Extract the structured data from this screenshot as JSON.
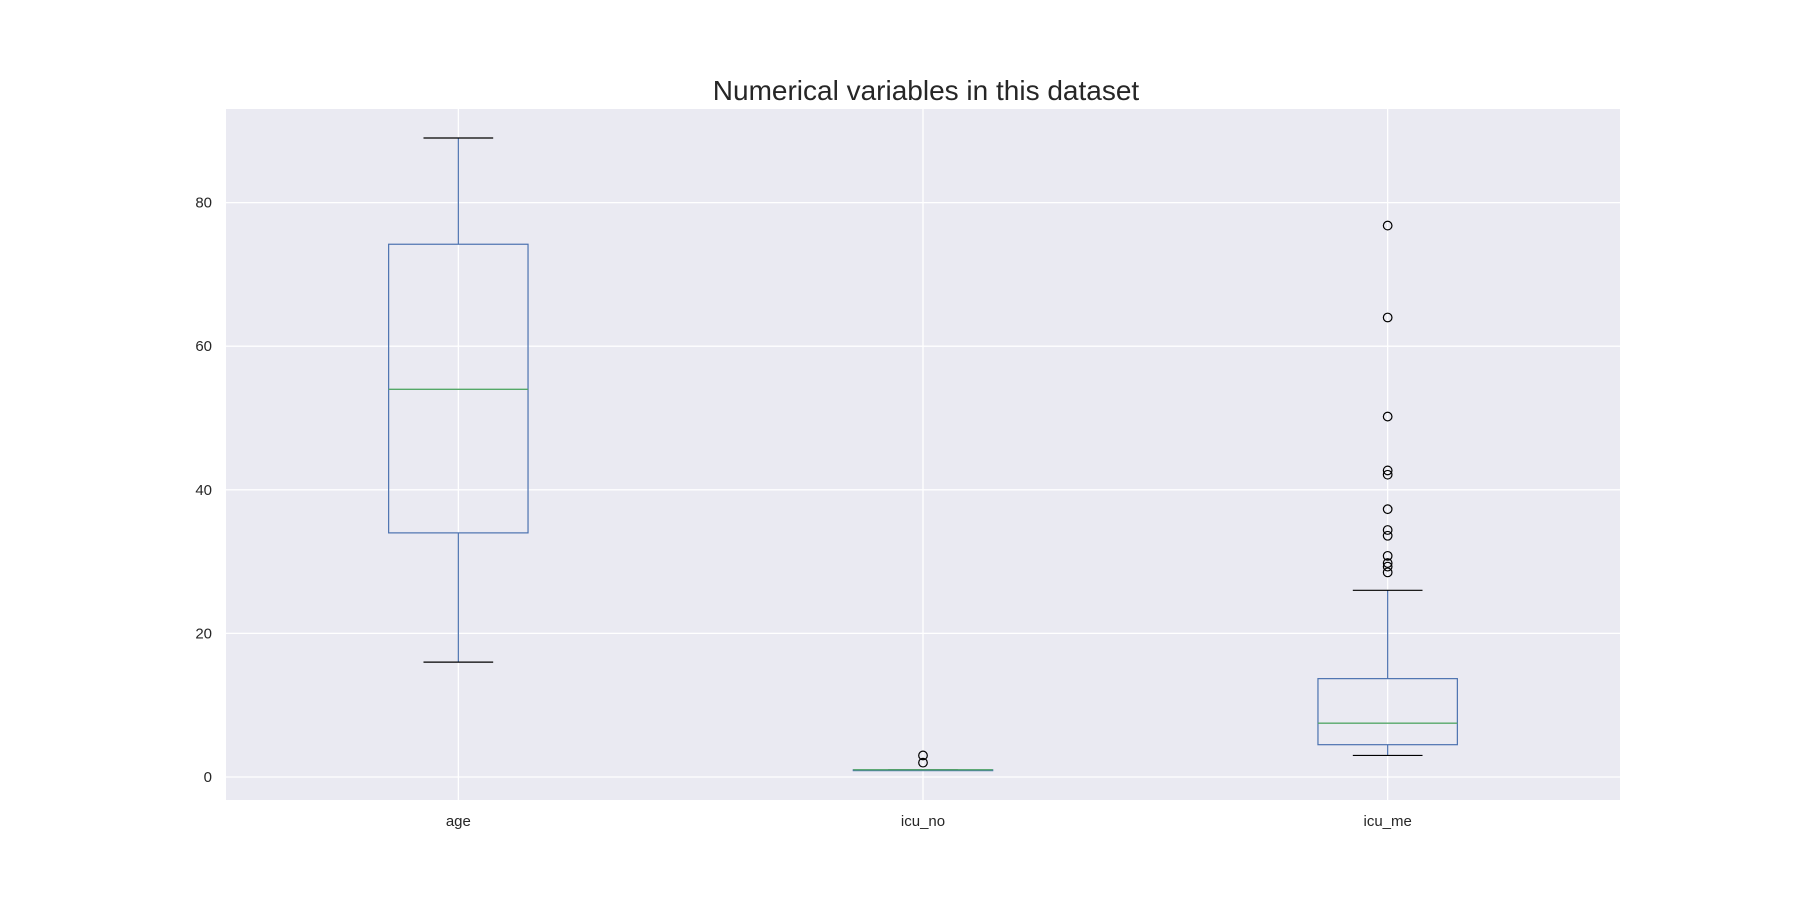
{
  "chart_data": {
    "type": "box",
    "title": "Numerical variables in this dataset",
    "xlabel": "",
    "ylabel": "",
    "categories": [
      "age",
      "icu_no",
      "icu_me"
    ],
    "ylim": [
      -3,
      93
    ],
    "yticks": [
      0,
      20,
      40,
      60,
      80
    ],
    "grid": true,
    "legend": "none",
    "colors": {
      "background": "#eaeaf2",
      "grid": "#ffffff",
      "box": "#4c72b0",
      "median": "#55a868",
      "caps": "#000000",
      "fliers": "#000000"
    },
    "boxes": [
      {
        "name": "age",
        "whisker_low": 16,
        "q1": 34,
        "median": 54,
        "q3": 74.2,
        "whisker_high": 89,
        "outliers": []
      },
      {
        "name": "icu_no",
        "whisker_low": 1,
        "q1": 1,
        "median": 1,
        "q3": 1,
        "whisker_high": 1,
        "outliers": [
          2,
          3
        ]
      },
      {
        "name": "icu_me",
        "whisker_low": 3,
        "q1": 4.5,
        "median": 7.5,
        "q3": 13.7,
        "whisker_high": 26,
        "outliers": [
          28.5,
          29.3,
          29.8,
          30.8,
          33.6,
          34.4,
          37.3,
          42.1,
          42.7,
          50.2,
          64,
          76.8
        ]
      }
    ]
  }
}
